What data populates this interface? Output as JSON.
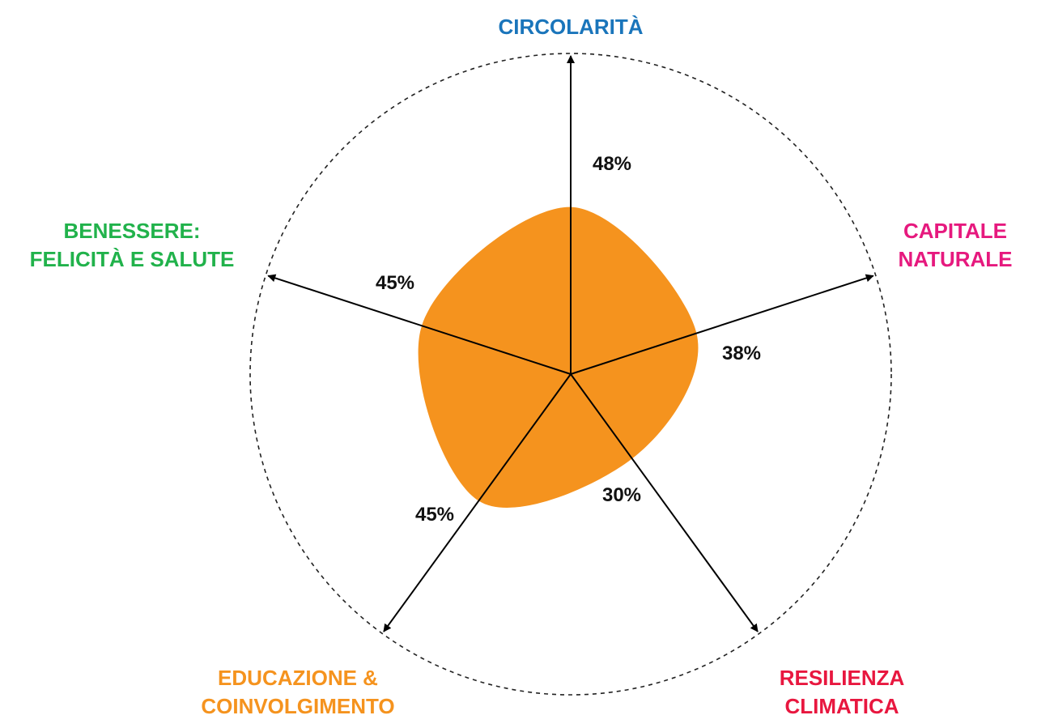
{
  "chart_data": {
    "type": "radar",
    "max_value": 100,
    "grid": "outer-dashed-circle",
    "fill_color": "#f5931e",
    "axes": [
      {
        "label_lines": [
          "CIRCOLARITÀ"
        ],
        "value": 48,
        "value_label": "48%",
        "color": "#1a75bb"
      },
      {
        "label_lines": [
          "CAPITALE",
          "NATURALE"
        ],
        "value": 38,
        "value_label": "38%",
        "color": "#e6197e"
      },
      {
        "label_lines": [
          "RESILIENZA",
          "CLIMATICA"
        ],
        "value": 30,
        "value_label": "30%",
        "color": "#e8173f"
      },
      {
        "label_lines": [
          "EDUCAZIONE &",
          "COINVOLGIMENTO"
        ],
        "value": 45,
        "value_label": "45%",
        "color": "#f5931e"
      },
      {
        "label_lines": [
          "BENESSERE:",
          "FELICITÀ E SALUTE"
        ],
        "value": 45,
        "value_label": "45%",
        "color": "#21b24b"
      }
    ]
  }
}
